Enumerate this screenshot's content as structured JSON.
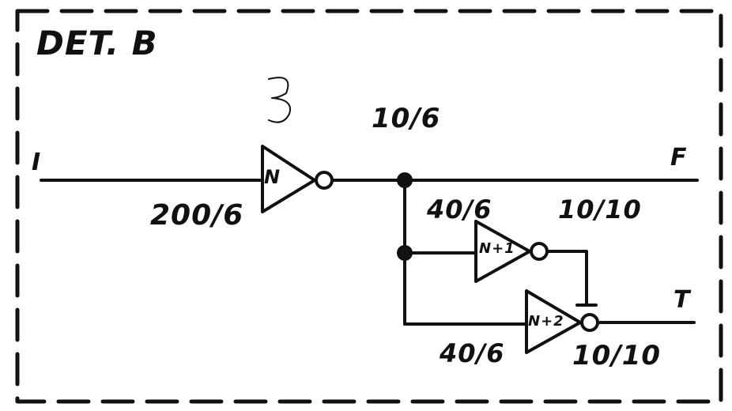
{
  "title": "DET. B",
  "annotation_mark": "3",
  "ports": {
    "input": "I",
    "output_f": "F",
    "output_t": "T"
  },
  "gates": {
    "n": {
      "label": "N",
      "size": "200/6"
    },
    "n1": {
      "label": "N+1",
      "size_input": "40/6",
      "size_output": "10/10"
    },
    "n2": {
      "label": "N+2",
      "size_input": "40/6",
      "size_output": "10/10"
    }
  },
  "node_size": "10/6"
}
